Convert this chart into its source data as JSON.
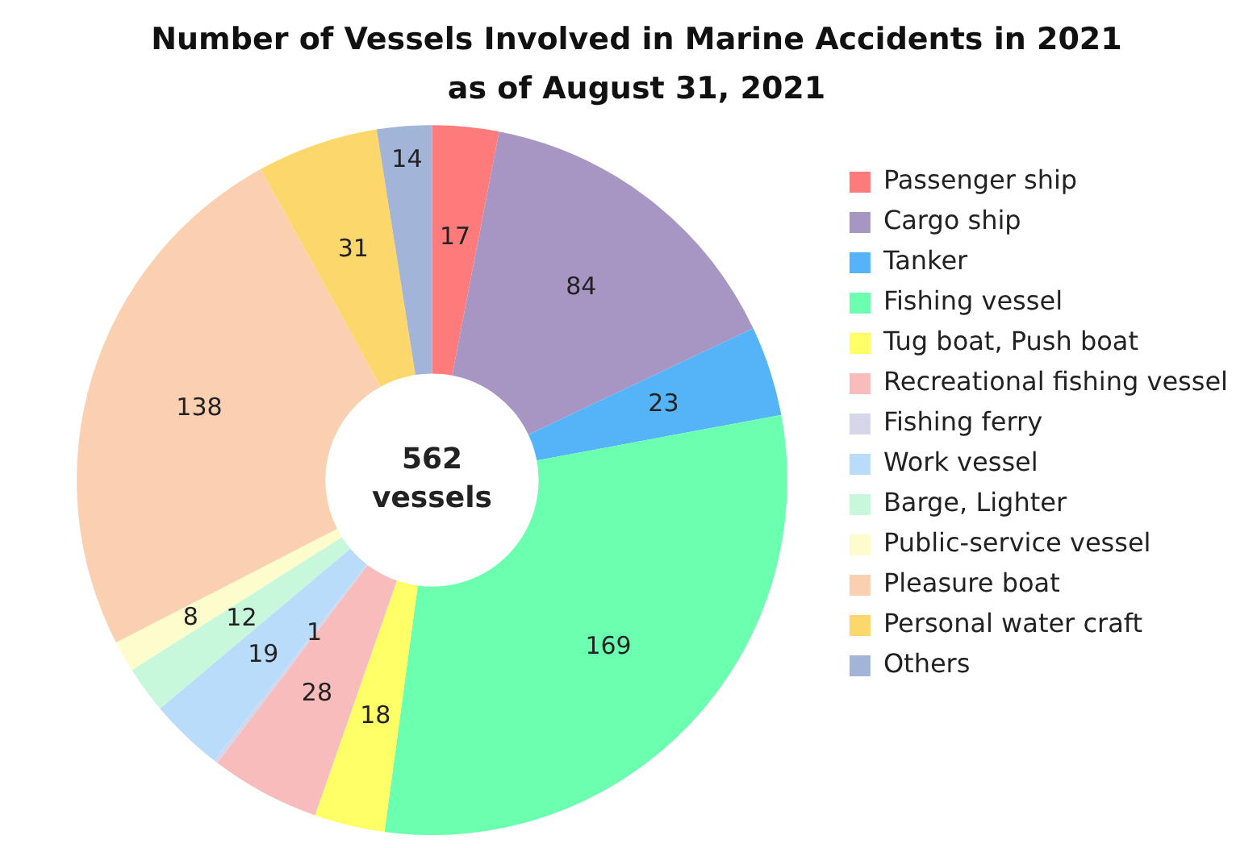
{
  "chart_data": {
    "type": "donut",
    "title": "Number of Vessels Involved in Marine Accidents in 2021",
    "subtitle": "as of August 31, 2021",
    "categories": [
      "Passenger ship",
      "Cargo ship",
      "Tanker",
      "Fishing vessel",
      "Tug boat, Push boat",
      "Recreational fishing vessel",
      "Fishing ferry",
      "Work vessel",
      "Barge, Lighter",
      "Public-service vessel",
      "Pleasure boat",
      "Personal water craft",
      "Others"
    ],
    "values": [
      17,
      84,
      23,
      169,
      18,
      28,
      1,
      19,
      12,
      8,
      138,
      31,
      14
    ],
    "colors": [
      "#ff7b7b",
      "#a796c4",
      "#55b4f8",
      "#6bffb0",
      "#ffff66",
      "#f8bcbc",
      "#d6d6ea",
      "#b8dcfa",
      "#c8f8dc",
      "#fdfccc",
      "#fbd0b0",
      "#fcd86c",
      "#a2b4d8"
    ],
    "data_labels": true,
    "legend": "right",
    "annotations": [
      "562\nvessels"
    ]
  }
}
